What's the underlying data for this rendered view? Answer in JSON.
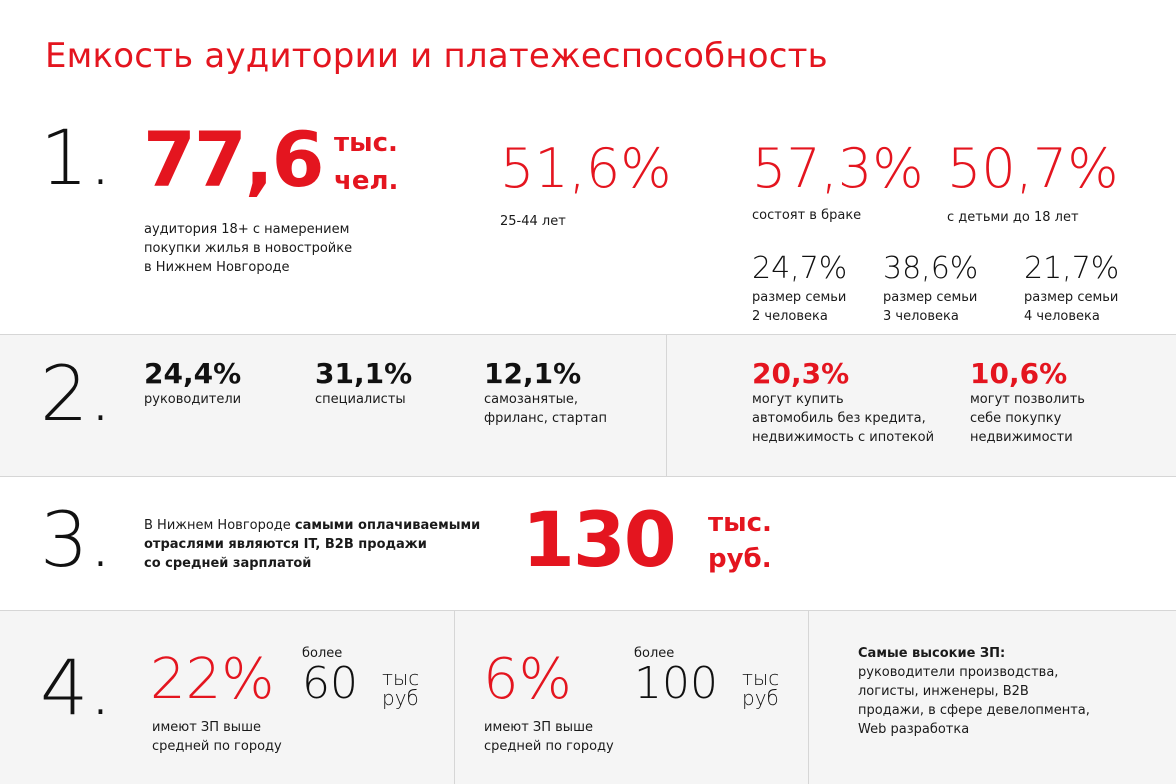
{
  "title": "Емкость аудитории и платежеспособность",
  "section1": {
    "number": "1.",
    "audience": {
      "value": "77,6",
      "unit_line1": "тыс.",
      "unit_line2": "чел.",
      "caption_lines": [
        "аудитория 18+ с намерением",
        "покупки жилья в новостройке",
        "в Нижнем Новгороде"
      ]
    },
    "age": {
      "value": "51,6%",
      "caption": "25-44 лет"
    },
    "married": {
      "value": "57,3%",
      "caption": "состоят в браке"
    },
    "children": {
      "value": "50,7%",
      "caption": "с детьми до 18 лет"
    },
    "family": [
      {
        "value": "24,7%",
        "line1": "размер семьи",
        "line2": "2 человека"
      },
      {
        "value": "38,6%",
        "line1": "размер семьи",
        "line2": "3 человека"
      },
      {
        "value": "21,7%",
        "line1": "размер семьи",
        "line2": "4 человека"
      }
    ]
  },
  "section2": {
    "number": "2.",
    "jobs": [
      {
        "value": "24,4%",
        "lines": [
          "руководители"
        ]
      },
      {
        "value": "31,1%",
        "lines": [
          "специалисты"
        ]
      },
      {
        "value": "12,1%",
        "lines": [
          "самозанятые,",
          "фриланс, стартап"
        ]
      }
    ],
    "afford": [
      {
        "value": "20,3%",
        "lines": [
          "могут купить",
          "автомобиль без кредита,",
          "недвижимость с ипотекой"
        ]
      },
      {
        "value": "10,6%",
        "lines": [
          "могут позволить",
          "себе покупку",
          "недвижимости"
        ]
      }
    ]
  },
  "section3": {
    "number": "3.",
    "text_line1_regular": "В Нижнем Новгороде ",
    "text_line1_bold": "самыми оплачиваемыми",
    "text_line2": "отраслями являются IT, B2B продажи",
    "text_line3": "со средней зарплатой",
    "salary_value": "130",
    "salary_unit1": "тыс.",
    "salary_unit2": "руб."
  },
  "section4": {
    "number": "4.",
    "blocks": [
      {
        "percent": "22%",
        "above": "более",
        "amount": "60",
        "unit1": "тыс",
        "unit2": "руб",
        "caption_lines": [
          "имеют ЗП выше",
          "средней по городу"
        ]
      },
      {
        "percent": "6%",
        "above": "более",
        "amount": "100",
        "unit1": "тыс",
        "unit2": "руб",
        "caption_lines": [
          "имеют ЗП выше",
          "средней по городу"
        ]
      }
    ],
    "highest": {
      "heading": "Самые высокие ЗП:",
      "lines": [
        "руководители производства,",
        "логисты, инженеры, B2B",
        "продажи, в сфере девелопмента,",
        "Web разработка"
      ]
    }
  },
  "colors": {
    "accent": "#e4151f",
    "text": "#111111",
    "band": "#f5f5f5",
    "divider": "#d6d6d6"
  }
}
